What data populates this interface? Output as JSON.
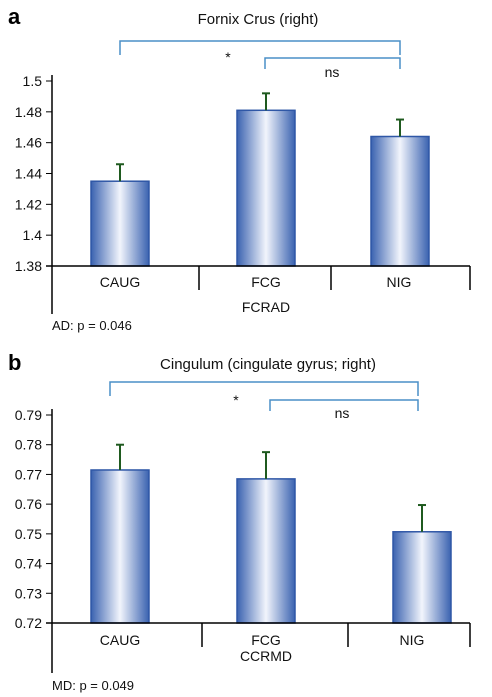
{
  "colors": {
    "bar_edge": "#2f57a6",
    "bar_dark": "#3a62b0",
    "bar_light": "#f2f5fc",
    "error_bar": "#1f5a1f",
    "bracket": "#4a8fc7",
    "axis": "#000000"
  },
  "chart_data": [
    {
      "panel": "a",
      "type": "bar",
      "title": "Fornix Crus (right)",
      "categories": [
        "CAUG",
        "FCG",
        "NIG"
      ],
      "values": [
        1.435,
        1.481,
        1.464
      ],
      "errors": [
        0.011,
        0.011,
        0.011
      ],
      "ylim": [
        1.38,
        1.5
      ],
      "yticks": [
        "1.38",
        "1.4",
        "1.42",
        "1.44",
        "1.46",
        "1.48",
        "1.5"
      ],
      "xlabel": "FCRAD",
      "grid": false,
      "note": "AD: p = 0.046",
      "significance": [
        {
          "from": "CAUG",
          "to": "NIG",
          "label": "*"
        },
        {
          "from": "FCG",
          "to": "NIG",
          "label": "ns"
        }
      ]
    },
    {
      "panel": "b",
      "type": "bar",
      "title": "Cingulum (cingulate gyrus; right)",
      "categories": [
        "CAUG",
        "FCG",
        "NIG"
      ],
      "values": [
        0.7715,
        0.7685,
        0.7507
      ],
      "errors": [
        0.0085,
        0.009,
        0.009
      ],
      "ylim": [
        0.72,
        0.79
      ],
      "yticks": [
        "0.72",
        "0.73",
        "0.74",
        "0.75",
        "0.76",
        "0.77",
        "0.78",
        "0.79"
      ],
      "xlabel": "CCRMD",
      "grid": false,
      "note": "MD: p = 0.049",
      "significance": [
        {
          "from": "CAUG",
          "to": "NIG",
          "label": "*"
        },
        {
          "from": "FCG",
          "to": "NIG",
          "label": "ns"
        }
      ]
    }
  ]
}
